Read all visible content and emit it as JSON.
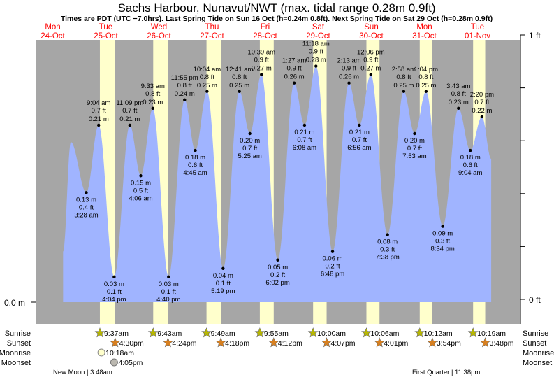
{
  "title": "Sachs Harbour, Nunavut/NWT (max. tidal range 0.28m 0.9ft)",
  "subtitle": "Times are PDT (UTC −7.0hrs). Last Spring Tide on Sun 16 Oct (h=0.24m 0.8ft). Next Spring Tide on Sat 29 Oct (h=0.28m 0.9ft)",
  "colors": {
    "night": "#a6a6a6",
    "day": "#ffffcc",
    "water": "#a0b4ff",
    "day_label": "#ff0000",
    "sunrise_star": "#b8b800",
    "sunset_star": "#d88020"
  },
  "chart_data": {
    "type": "area",
    "left_axis_label": "0.0 m",
    "right_axis": {
      "top_label": "1 ft",
      "bottom_label": "0 ft"
    },
    "ylim_ft": [
      0,
      1
    ],
    "days": [
      {
        "dow": "Mon",
        "date": "24-Oct"
      },
      {
        "dow": "Tue",
        "date": "25-Oct"
      },
      {
        "dow": "Wed",
        "date": "26-Oct"
      },
      {
        "dow": "Thu",
        "date": "27-Oct"
      },
      {
        "dow": "Fri",
        "date": "28-Oct"
      },
      {
        "dow": "Sat",
        "date": "29-Oct"
      },
      {
        "dow": "Sun",
        "date": "30-Oct"
      },
      {
        "dow": "Mon",
        "date": "31-Oct"
      },
      {
        "dow": "Tue",
        "date": "01-Nov"
      }
    ],
    "extremes": [
      {
        "day": 0,
        "hour": 20.5,
        "m": 0.19,
        "type": "high",
        "labeled": false
      },
      {
        "day": 1,
        "hour": 3.47,
        "m": 0.13,
        "type": "low",
        "m_label": "0.13 m",
        "ft_label": "0.4 ft",
        "time": "3:28 am"
      },
      {
        "day": 1,
        "hour": 9.07,
        "m": 0.21,
        "type": "high",
        "m_label": "0.21 m",
        "ft_label": "0.7 ft",
        "time": "9:04 am"
      },
      {
        "day": 1,
        "hour": 16.07,
        "m": 0.03,
        "type": "low",
        "m_label": "0.03 m",
        "ft_label": "0.1 ft",
        "time": "4:04 pm"
      },
      {
        "day": 1,
        "hour": 23.15,
        "m": 0.21,
        "type": "high",
        "m_label": "0.21 m",
        "ft_label": "0.7 ft",
        "time": "11:09 pm"
      },
      {
        "day": 2,
        "hour": 4.1,
        "m": 0.15,
        "type": "low",
        "m_label": "0.15 m",
        "ft_label": "0.5 ft",
        "time": "4:06 am"
      },
      {
        "day": 2,
        "hour": 9.55,
        "m": 0.23,
        "type": "high",
        "m_label": "0.23 m",
        "ft_label": "0.8 ft",
        "time": "9:33 am"
      },
      {
        "day": 2,
        "hour": 16.67,
        "m": 0.03,
        "type": "low",
        "m_label": "0.03 m",
        "ft_label": "0.1 ft",
        "time": "4:40 pm"
      },
      {
        "day": 2,
        "hour": 23.92,
        "m": 0.24,
        "type": "high",
        "m_label": "0.24 m",
        "ft_label": "0.8 ft",
        "time": "11:55 pm"
      },
      {
        "day": 3,
        "hour": 4.75,
        "m": 0.18,
        "type": "low",
        "m_label": "0.18 m",
        "ft_label": "0.6 ft",
        "time": "4:45 am"
      },
      {
        "day": 3,
        "hour": 10.07,
        "m": 0.25,
        "type": "high",
        "m_label": "0.25 m",
        "ft_label": "0.8 ft",
        "time": "10:04 am"
      },
      {
        "day": 3,
        "hour": 17.32,
        "m": 0.04,
        "type": "low",
        "m_label": "0.04 m",
        "ft_label": "0.1 ft",
        "time": "5:19 pm"
      },
      {
        "day": 4,
        "hour": 0.68,
        "m": 0.25,
        "type": "high",
        "m_label": "0.25 m",
        "ft_label": "0.8 ft",
        "time": "12:41 am"
      },
      {
        "day": 4,
        "hour": 5.42,
        "m": 0.2,
        "type": "low",
        "m_label": "0.20 m",
        "ft_label": "0.7 ft",
        "time": "5:25 am"
      },
      {
        "day": 4,
        "hour": 10.65,
        "m": 0.27,
        "type": "high",
        "m_label": "0.27 m",
        "ft_label": "0.9 ft",
        "time": "10:39 am"
      },
      {
        "day": 4,
        "hour": 18.03,
        "m": 0.05,
        "type": "low",
        "m_label": "0.05 m",
        "ft_label": "0.2 ft",
        "time": "6:02 pm"
      },
      {
        "day": 5,
        "hour": 1.45,
        "m": 0.26,
        "type": "high",
        "m_label": "0.26 m",
        "ft_label": "0.9 ft",
        "time": "1:27 am"
      },
      {
        "day": 5,
        "hour": 6.13,
        "m": 0.21,
        "type": "low",
        "m_label": "0.21 m",
        "ft_label": "0.7 ft",
        "time": "6:08 am"
      },
      {
        "day": 5,
        "hour": 11.3,
        "m": 0.28,
        "type": "high",
        "m_label": "0.28 m",
        "ft_label": "0.9 ft",
        "time": "11:18 am"
      },
      {
        "day": 5,
        "hour": 18.8,
        "m": 0.06,
        "type": "low",
        "m_label": "0.06 m",
        "ft_label": "0.2 ft",
        "time": "6:48 pm"
      },
      {
        "day": 6,
        "hour": 2.22,
        "m": 0.26,
        "type": "high",
        "m_label": "0.26 m",
        "ft_label": "0.9 ft",
        "time": "2:13 am"
      },
      {
        "day": 6,
        "hour": 6.93,
        "m": 0.21,
        "type": "low",
        "m_label": "0.21 m",
        "ft_label": "0.7 ft",
        "time": "6:56 am"
      },
      {
        "day": 6,
        "hour": 12.1,
        "m": 0.27,
        "type": "high",
        "m_label": "0.27 m",
        "ft_label": "0.9 ft",
        "time": "12:06 pm"
      },
      {
        "day": 6,
        "hour": 19.63,
        "m": 0.08,
        "type": "low",
        "m_label": "0.08 m",
        "ft_label": "0.3 ft",
        "time": "7:38 pm"
      },
      {
        "day": 7,
        "hour": 2.97,
        "m": 0.25,
        "type": "high",
        "m_label": "0.25 m",
        "ft_label": "0.8 ft",
        "time": "2:58 am"
      },
      {
        "day": 7,
        "hour": 7.88,
        "m": 0.2,
        "type": "low",
        "m_label": "0.20 m",
        "ft_label": "0.7 ft",
        "time": "7:53 am"
      },
      {
        "day": 7,
        "hour": 13.07,
        "m": 0.25,
        "type": "high",
        "m_label": "0.25 m",
        "ft_label": "0.8 ft",
        "time": "1:04 pm"
      },
      {
        "day": 7,
        "hour": 20.57,
        "m": 0.09,
        "type": "low",
        "m_label": "0.09 m",
        "ft_label": "0.3 ft",
        "time": "8:34 pm"
      },
      {
        "day": 8,
        "hour": 3.72,
        "m": 0.23,
        "type": "high",
        "m_label": "0.23 m",
        "ft_label": "0.8 ft",
        "time": "3:43 am"
      },
      {
        "day": 8,
        "hour": 9.07,
        "m": 0.18,
        "type": "low",
        "m_label": "0.18 m",
        "ft_label": "0.6 ft",
        "time": "9:04 am"
      },
      {
        "day": 8,
        "hour": 14.33,
        "m": 0.22,
        "type": "high",
        "m_label": "0.22 m",
        "ft_label": "0.7 ft",
        "time": "2:20 pm"
      }
    ],
    "curve_start": {
      "day": 0,
      "hour": 17.0,
      "m": 0.06
    },
    "curve_end": {
      "day": 8,
      "hour": 18.5,
      "m": 0.17
    }
  },
  "sun": [
    {
      "day": 1,
      "rise": "9:37am",
      "rise_h": 9.62,
      "set": "4:30pm",
      "set_h": 16.5
    },
    {
      "day": 2,
      "rise": "9:43am",
      "rise_h": 9.72,
      "set": "4:24pm",
      "set_h": 16.4
    },
    {
      "day": 3,
      "rise": "9:49am",
      "rise_h": 9.82,
      "set": "4:18pm",
      "set_h": 16.3
    },
    {
      "day": 4,
      "rise": "9:55am",
      "rise_h": 9.92,
      "set": "4:12pm",
      "set_h": 16.2
    },
    {
      "day": 5,
      "rise": "10:00am",
      "rise_h": 10.0,
      "set": "4:07pm",
      "set_h": 16.12
    },
    {
      "day": 6,
      "rise": "10:06am",
      "rise_h": 10.1,
      "set": "4:01pm",
      "set_h": 16.02
    },
    {
      "day": 7,
      "rise": "10:12am",
      "rise_h": 10.2,
      "set": "3:54pm",
      "set_h": 15.9
    },
    {
      "day": 8,
      "rise": "10:19am",
      "rise_h": 10.32,
      "set": "3:48pm",
      "set_h": 15.8
    }
  ],
  "moon": {
    "rise": "10:18am",
    "rise_day": 1,
    "rise_h": 10.3,
    "set": "4:05pm",
    "set_day": 1,
    "set_h": 16.08
  },
  "row_labels": {
    "sunrise": "Sunrise",
    "sunset": "Sunset",
    "moonrise": "Moonrise",
    "moonset": "Moonset"
  },
  "phases": {
    "new_moon": "New Moon | 3:48am",
    "first_quarter": "First Quarter | 11:38pm"
  }
}
